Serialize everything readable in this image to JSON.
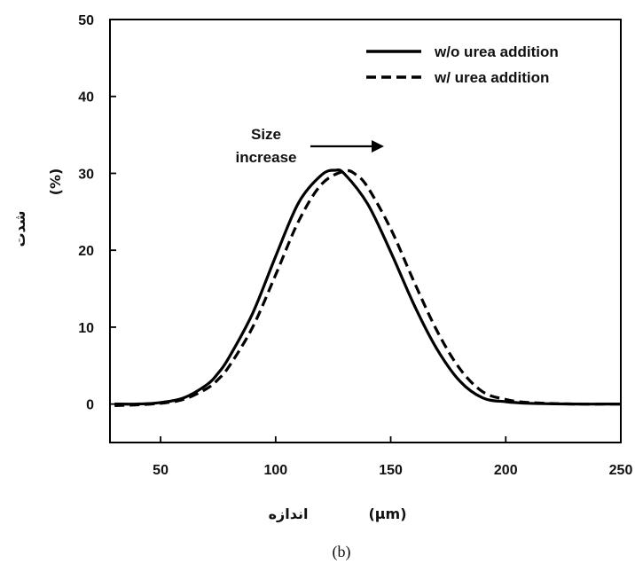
{
  "chart_data": {
    "type": "line",
    "panel_label": "(b)",
    "xlabel_text": "اندازه",
    "xlabel_unit": "(µm)",
    "ylabel_text": "شدت",
    "ylabel_unit": "(%)",
    "xlim": [
      28,
      250
    ],
    "ylim": [
      -5,
      50
    ],
    "xticks": [
      50,
      100,
      150,
      200,
      250
    ],
    "yticks": [
      0,
      10,
      20,
      30,
      40,
      50
    ],
    "legend_position": "top-right",
    "annotation": {
      "text_line1": "Size",
      "text_line2": "increase"
    },
    "series": [
      {
        "name": "w/o urea addition",
        "style": "solid",
        "color": "#000000",
        "x": [
          30,
          40,
          50,
          60,
          70,
          75,
          80,
          90,
          100,
          110,
          120,
          126,
          130,
          140,
          150,
          160,
          170,
          180,
          190,
          200,
          210,
          230,
          250
        ],
        "y": [
          0,
          0,
          0.2,
          0.8,
          2.5,
          4.0,
          6.2,
          11.8,
          19.2,
          26.2,
          29.8,
          30.4,
          29.9,
          26.0,
          19.8,
          13.0,
          7.2,
          3.0,
          0.8,
          0.3,
          0.1,
          0,
          0
        ]
      },
      {
        "name": "w/ urea addition",
        "style": "dashed",
        "color": "#000000",
        "x": [
          30,
          40,
          50,
          60,
          70,
          75,
          80,
          90,
          100,
          110,
          120,
          130,
          135,
          140,
          150,
          160,
          170,
          180,
          190,
          200,
          210,
          230,
          250
        ],
        "y": [
          -0.2,
          -0.1,
          0.1,
          0.6,
          2.0,
          3.2,
          5.0,
          10.0,
          16.8,
          23.8,
          28.6,
          30.3,
          29.8,
          28.2,
          22.8,
          16.0,
          9.6,
          4.6,
          1.6,
          0.6,
          0.2,
          0,
          0
        ]
      }
    ]
  }
}
